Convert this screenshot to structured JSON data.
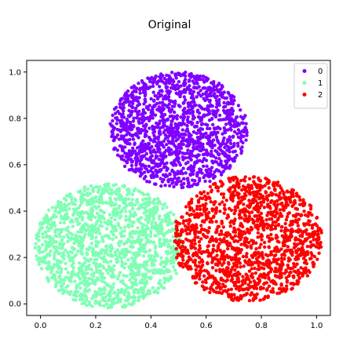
{
  "chart_data": {
    "type": "scatter",
    "title": "Original",
    "xlabel": "",
    "ylabel": "",
    "xlim": [
      -0.05,
      1.05
    ],
    "ylim": [
      -0.05,
      1.05
    ],
    "xticks": [
      "0.0",
      "0.2",
      "0.4",
      "0.6",
      "0.8",
      "1.0"
    ],
    "yticks": [
      "0.0",
      "0.2",
      "0.4",
      "0.6",
      "0.8",
      "1.0"
    ],
    "grid": false,
    "legend_position": "top-right",
    "series": [
      {
        "name": "0",
        "color": "#8000ff",
        "center": [
          0.5,
          0.75
        ],
        "radius": 0.25,
        "points": 1500
      },
      {
        "name": "1",
        "color": "#80ffb4",
        "center": [
          0.25,
          0.25
        ],
        "radius": 0.27,
        "points": 1500
      },
      {
        "name": "2",
        "color": "#ff0000",
        "center": [
          0.75,
          0.28
        ],
        "radius": 0.27,
        "points": 1500
      }
    ]
  }
}
